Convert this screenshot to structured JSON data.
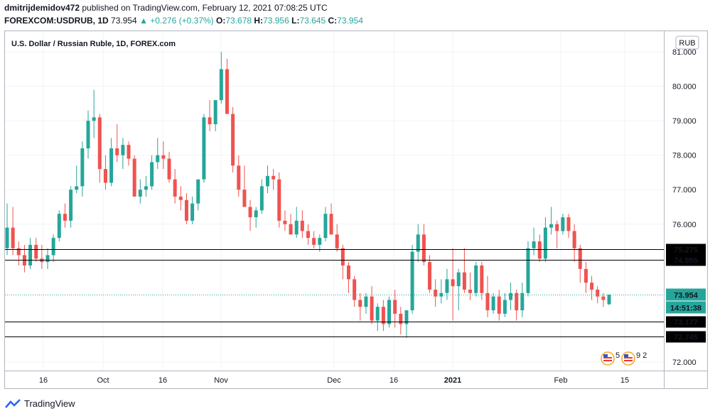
{
  "header": {
    "user": "dmitrijdemidov472",
    "published_text": "published on TradingView.com, February 12, 2021 07:08:25 UTC",
    "symbol": "FOREXCOM:USDRUB, 1D",
    "last": "73.954",
    "change": "▲ +0.276 (+0.37%)",
    "o_label": "O:",
    "o_val": "73.678",
    "h_label": "H:",
    "h_val": "73.956",
    "l_label": "L:",
    "l_val": "73.645",
    "c_label": "C:",
    "c_val": "73.954"
  },
  "footer": {
    "brand": "TradingView"
  },
  "chart_data": {
    "type": "candlestick",
    "title": "U.S. Dollar / Russian Ruble, 1D, FOREX.com",
    "currency_badge": "RUB",
    "ylim": [
      71.75,
      81.6
    ],
    "y_ticks": [
      "72.000",
      "76.000",
      "77.000",
      "78.000",
      "79.000",
      "80.000",
      "81.000"
    ],
    "x_ticks": [
      "16",
      "Oct",
      "16",
      "Nov",
      "Dec",
      "16",
      "2021",
      "Feb",
      "15"
    ],
    "x_tick_bold": "2021",
    "price_lines": [
      75.275,
      74.955,
      73.177,
      72.745
    ],
    "price_line_labels": [
      "75.275",
      "74.955",
      "73.177",
      "72.745"
    ],
    "last_price": 73.954,
    "last_price_label": "73.954",
    "countdown": "14:51:38",
    "colors": {
      "up": "#26a69a",
      "down": "#ef5350",
      "last_label_bg": "#26a69a",
      "line_label_bg": "#000000"
    },
    "event_badges": [
      "5",
      "9 2"
    ],
    "candles_ohlc": [
      [
        75.3,
        76.6,
        75.1,
        75.9
      ],
      [
        75.9,
        76.5,
        75.1,
        75.3
      ],
      [
        75.3,
        75.5,
        74.8,
        75.1
      ],
      [
        75.1,
        75.4,
        74.6,
        74.8
      ],
      [
        74.8,
        75.6,
        74.7,
        75.4
      ],
      [
        75.4,
        75.6,
        74.9,
        75.0
      ],
      [
        75.0,
        75.4,
        74.7,
        74.9
      ],
      [
        74.9,
        75.3,
        74.7,
        75.1
      ],
      [
        75.1,
        75.7,
        74.9,
        75.6
      ],
      [
        75.6,
        76.4,
        75.5,
        76.3
      ],
      [
        76.3,
        76.6,
        75.9,
        76.1
      ],
      [
        76.1,
        77.1,
        75.9,
        77.0
      ],
      [
        77.0,
        77.7,
        76.9,
        77.1
      ],
      [
        77.1,
        78.4,
        76.8,
        78.2
      ],
      [
        78.2,
        79.3,
        77.9,
        79.0
      ],
      [
        79.0,
        79.9,
        78.5,
        79.1
      ],
      [
        79.1,
        79.2,
        77.2,
        77.6
      ],
      [
        77.6,
        78.0,
        77.0,
        77.2
      ],
      [
        77.2,
        78.5,
        77.1,
        78.2
      ],
      [
        78.2,
        78.9,
        77.8,
        78.0
      ],
      [
        78.0,
        78.5,
        77.6,
        78.3
      ],
      [
        78.3,
        78.4,
        77.7,
        77.9
      ],
      [
        77.9,
        78.0,
        76.9,
        76.8
      ],
      [
        76.8,
        77.3,
        76.6,
        77.0
      ],
      [
        77.0,
        77.4,
        76.8,
        77.1
      ],
      [
        77.1,
        78.0,
        77.0,
        77.8
      ],
      [
        77.8,
        78.5,
        77.6,
        78.0
      ],
      [
        78.0,
        78.4,
        77.6,
        77.9
      ],
      [
        77.9,
        78.1,
        77.2,
        77.3
      ],
      [
        77.3,
        77.6,
        76.6,
        76.8
      ],
      [
        76.8,
        77.1,
        76.4,
        76.7
      ],
      [
        76.7,
        76.9,
        76.0,
        76.1
      ],
      [
        76.1,
        76.8,
        76.0,
        76.6
      ],
      [
        76.6,
        77.2,
        76.4,
        77.3
      ],
      [
        77.3,
        79.2,
        77.2,
        79.1
      ],
      [
        79.1,
        79.6,
        78.7,
        78.9
      ],
      [
        78.9,
        79.6,
        78.7,
        79.6
      ],
      [
        79.6,
        81.0,
        79.5,
        80.5
      ],
      [
        80.5,
        80.8,
        79.3,
        79.2
      ],
      [
        79.2,
        79.4,
        77.5,
        77.7
      ],
      [
        77.7,
        78.0,
        76.8,
        77.0
      ],
      [
        77.0,
        77.7,
        76.5,
        76.5
      ],
      [
        76.5,
        76.7,
        75.8,
        76.2
      ],
      [
        76.2,
        76.5,
        75.9,
        76.4
      ],
      [
        76.4,
        77.3,
        76.3,
        77.1
      ],
      [
        77.1,
        77.7,
        76.9,
        77.4
      ],
      [
        77.4,
        77.6,
        77.0,
        77.3
      ],
      [
        77.3,
        77.5,
        75.9,
        76.1
      ],
      [
        76.1,
        76.4,
        75.8,
        76.0
      ],
      [
        76.0,
        76.3,
        75.7,
        75.7
      ],
      [
        75.7,
        76.5,
        75.6,
        76.1
      ],
      [
        76.1,
        76.4,
        75.6,
        75.8
      ],
      [
        75.8,
        76.0,
        75.4,
        75.6
      ],
      [
        75.6,
        75.8,
        75.3,
        75.4
      ],
      [
        75.4,
        75.7,
        75.2,
        75.6
      ],
      [
        75.6,
        76.5,
        75.5,
        76.3
      ],
      [
        76.3,
        76.6,
        75.7,
        75.7
      ],
      [
        75.7,
        76.0,
        75.2,
        75.3
      ],
      [
        75.3,
        75.4,
        74.4,
        74.8
      ],
      [
        74.8,
        74.9,
        74.0,
        74.4
      ],
      [
        74.4,
        74.5,
        73.6,
        73.8
      ],
      [
        73.8,
        74.0,
        73.2,
        73.6
      ],
      [
        73.6,
        74.0,
        73.4,
        73.9
      ],
      [
        73.9,
        74.2,
        73.1,
        73.2
      ],
      [
        73.2,
        73.7,
        72.9,
        73.6
      ],
      [
        73.6,
        73.8,
        72.9,
        73.1
      ],
      [
        73.1,
        73.9,
        73.0,
        73.8
      ],
      [
        73.8,
        74.1,
        73.0,
        73.4
      ],
      [
        73.4,
        73.6,
        72.8,
        73.1
      ],
      [
        73.1,
        73.3,
        72.7,
        73.5
      ],
      [
        73.5,
        75.4,
        73.4,
        75.2
      ],
      [
        75.2,
        76.0,
        74.9,
        75.7
      ],
      [
        75.7,
        76.0,
        74.8,
        74.9
      ],
      [
        74.9,
        75.1,
        74.0,
        74.1
      ],
      [
        74.1,
        74.4,
        73.6,
        73.9
      ],
      [
        73.9,
        74.4,
        73.7,
        74.0
      ],
      [
        74.0,
        74.7,
        73.8,
        74.4
      ],
      [
        74.4,
        75.3,
        73.2,
        74.2
      ],
      [
        74.2,
        74.7,
        73.5,
        74.6
      ],
      [
        74.6,
        75.3,
        74.0,
        74.1
      ],
      [
        74.1,
        74.6,
        73.8,
        74.0
      ],
      [
        74.0,
        74.9,
        73.9,
        74.8
      ],
      [
        74.8,
        74.9,
        73.8,
        74.0
      ],
      [
        74.0,
        74.5,
        73.3,
        73.5
      ],
      [
        73.5,
        74.0,
        73.4,
        73.9
      ],
      [
        73.9,
        74.1,
        73.2,
        73.4
      ],
      [
        73.4,
        74.0,
        73.3,
        73.8
      ],
      [
        73.8,
        74.3,
        73.5,
        74.0
      ],
      [
        74.0,
        74.1,
        73.2,
        73.5
      ],
      [
        73.5,
        74.3,
        73.3,
        74.0
      ],
      [
        74.0,
        75.5,
        73.9,
        75.3
      ],
      [
        75.3,
        75.9,
        75.1,
        75.5
      ],
      [
        75.5,
        75.7,
        74.9,
        75.0
      ],
      [
        75.0,
        76.2,
        74.9,
        75.9
      ],
      [
        75.9,
        76.5,
        75.7,
        76.0
      ],
      [
        76.0,
        76.1,
        75.3,
        75.8
      ],
      [
        75.8,
        76.3,
        75.7,
        76.2
      ],
      [
        76.2,
        76.3,
        75.6,
        75.8
      ],
      [
        75.8,
        76.0,
        74.9,
        75.3
      ],
      [
        75.3,
        75.4,
        74.3,
        74.7
      ],
      [
        74.7,
        74.9,
        74.0,
        74.3
      ],
      [
        74.3,
        74.5,
        73.8,
        74.1
      ],
      [
        74.1,
        74.2,
        73.7,
        73.9
      ],
      [
        73.9,
        74.0,
        73.6,
        73.8
      ],
      [
        73.678,
        73.956,
        73.645,
        73.954
      ]
    ]
  }
}
